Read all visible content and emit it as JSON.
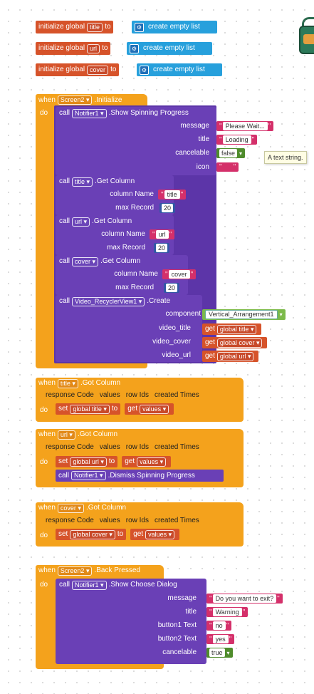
{
  "globals": [
    {
      "label": "initialize global",
      "name": "title",
      "to": "to",
      "value": "create empty list"
    },
    {
      "label": "initialize global",
      "name": "url",
      "to": "to",
      "value": "create empty list"
    },
    {
      "label": "initialize global",
      "name": "cover",
      "to": "to",
      "value": "create empty list"
    }
  ],
  "kw": {
    "when": "when",
    "do": "do",
    "call": "call",
    "get": "get",
    "set": "set",
    "to": "to"
  },
  "init": {
    "component": "Screen2",
    "event": ".Initialize",
    "notifier": "Notifier1",
    "show_method": ".Show Spinning Progress",
    "message_lbl": "message",
    "message": "Please Wait...",
    "title_lbl": "title",
    "title": "Loading",
    "cancelable_lbl": "cancelable",
    "cancelable": "false",
    "tooltip": "A text string.",
    "icon_lbl": "icon",
    "icon": "",
    "getcol": ".Get Column",
    "colname_lbl": "column Name",
    "maxrec_lbl": "max Record",
    "db1": "title",
    "col1": "title",
    "max1": "20",
    "db2": "url",
    "col2": "url",
    "max2": "20",
    "db3": "cover",
    "col3": "cover",
    "max3": "20",
    "recycler": "Video_RecyclerView1",
    "create": ".Create",
    "component_lbl": "component",
    "component_val": "Vertical_Arrangement1",
    "video_title_lbl": "video_title",
    "video_title": "global title",
    "video_cover_lbl": "video_cover",
    "video_cover": "global cover",
    "video_url_lbl": "video_url",
    "video_url": "global url"
  },
  "gotcol": {
    "event": ".Got Column",
    "params": [
      "response Code",
      "values",
      "row Ids",
      "created Times"
    ],
    "b1": {
      "component": "title",
      "var": "global title",
      "val": "values"
    },
    "b2": {
      "component": "url",
      "var": "global url",
      "val": "values",
      "notifier": "Notifier1",
      "dismiss": ".Dismiss Spinning Progress"
    },
    "b3": {
      "component": "cover",
      "var": "global cover",
      "val": "values"
    }
  },
  "back": {
    "component": "Screen2",
    "event": ".Back Pressed",
    "notifier": "Notifier1",
    "method": ".Show Choose Dialog",
    "message_lbl": "message",
    "message": "Do you want to exit?",
    "title_lbl": "title",
    "title": "Warning",
    "b1_lbl": "button1 Text",
    "b1": "no",
    "b2_lbl": "button2 Text",
    "b2": "yes",
    "cancelable_lbl": "cancelable",
    "cancelable": "true"
  },
  "colors": {
    "event": "#f4a21c",
    "procedure": "#5c35a8",
    "variable": "#d6532a",
    "text": "#d4306a",
    "math": "#3257a5",
    "logic": "#4f8c2c",
    "list": "#27a0dc"
  }
}
